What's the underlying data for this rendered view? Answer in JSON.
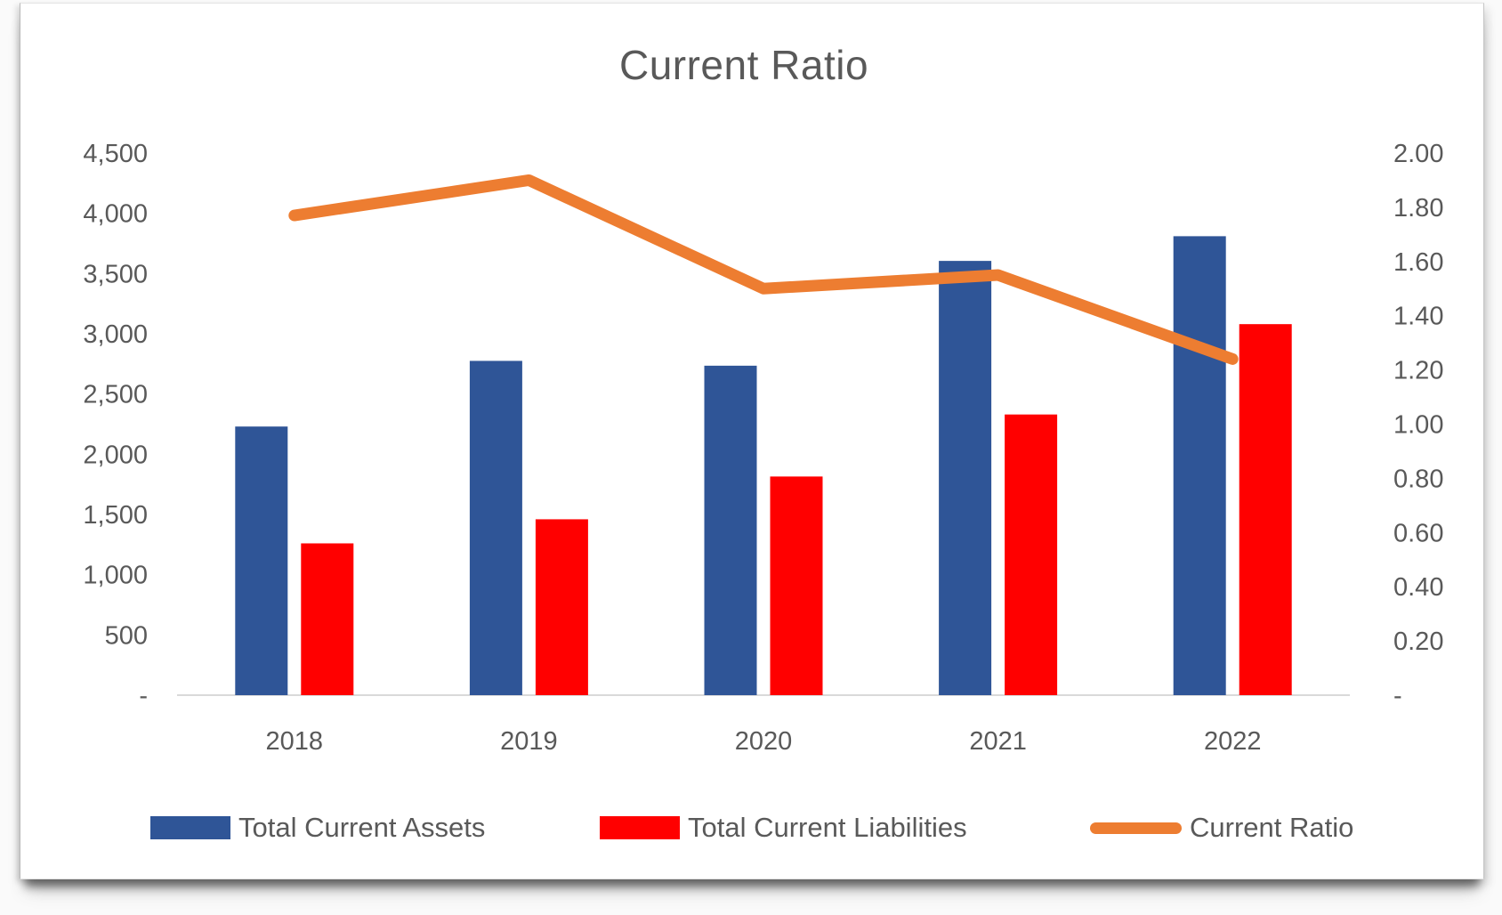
{
  "chart_data": {
    "type": "bar",
    "combo": "clustered-bar-with-line-on-secondary-axis",
    "title": "Current Ratio",
    "categories": [
      "2018",
      "2019",
      "2020",
      "2021",
      "2022"
    ],
    "series": [
      {
        "name": "Total Current Assets",
        "type": "bar",
        "axis": "left",
        "color": "#2F5597",
        "values": [
          2230,
          2775,
          2735,
          3605,
          3810
        ]
      },
      {
        "name": "Total Current Liabilities",
        "type": "bar",
        "axis": "left",
        "color": "#FF0000",
        "values": [
          1260,
          1460,
          1815,
          2330,
          3080
        ]
      },
      {
        "name": "Current Ratio",
        "type": "line",
        "axis": "right",
        "color": "#ED7D31",
        "values": [
          1.77,
          1.9,
          1.5,
          1.55,
          1.24
        ]
      }
    ],
    "left_axis": {
      "min": 0,
      "max": 4500,
      "tick_step": 500,
      "tick_labels": [
        "-",
        "500",
        "1,000",
        "1,500",
        "2,000",
        "2,500",
        "3,000",
        "3,500",
        "4,000",
        "4,500"
      ]
    },
    "right_axis": {
      "min": 0,
      "max": 2.0,
      "tick_step": 0.2,
      "tick_labels": [
        "-",
        "0.20",
        "0.40",
        "0.60",
        "0.80",
        "1.00",
        "1.20",
        "1.40",
        "1.60",
        "1.80",
        "2.00"
      ]
    },
    "grid": false,
    "legend_position": "bottom",
    "colors": {
      "text": "#595959",
      "axis_line": "#D9D9D9",
      "background": "#FFFFFF"
    }
  },
  "legend": {
    "items": [
      {
        "label": "Total Current Assets"
      },
      {
        "label": "Total Current Liabilities"
      },
      {
        "label": "Current Ratio"
      }
    ]
  }
}
